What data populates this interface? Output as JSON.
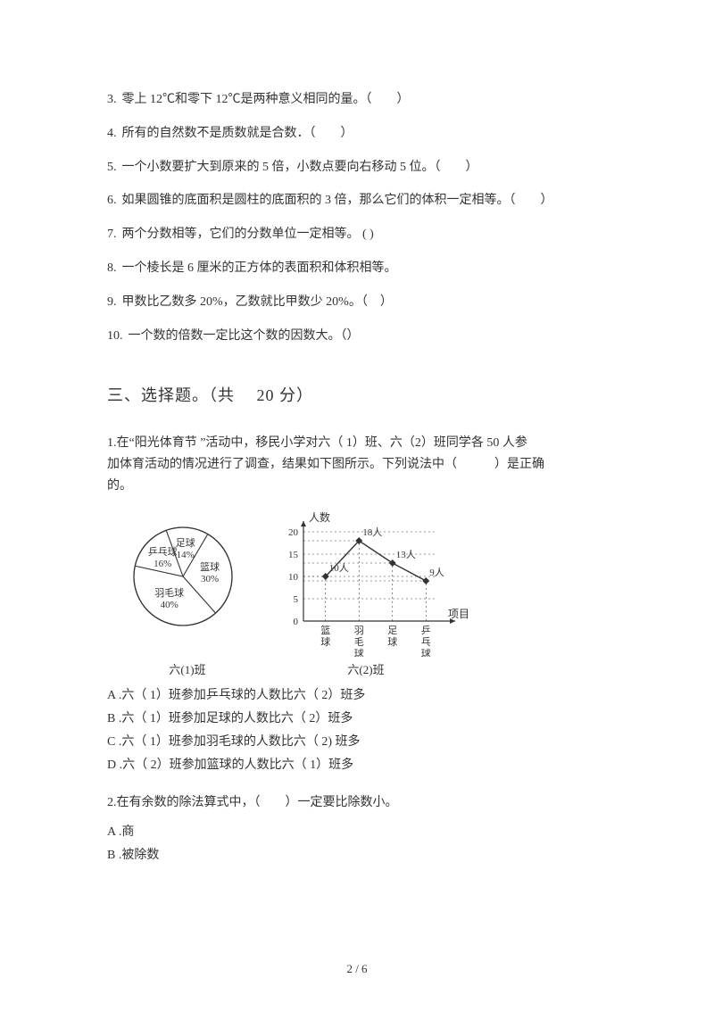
{
  "questions_tf": [
    {
      "num": "3.",
      "text": "零上 12℃和零下 12℃是两种意义相同的量。（　　）"
    },
    {
      "num": "4.",
      "text": "所有的自然数不是质数就是合数．（　　）"
    },
    {
      "num": "5.",
      "text": "一个小数要扩大到原来的  5 倍，小数点要向右移动  5 位。（　　）"
    },
    {
      "num": "6.",
      "text": "如果圆锥的底面积是圆柱的底面积的 3 倍，那么它们的体积一定相等。（　　）"
    },
    {
      "num": "7.",
      "text": "两个分数相等，它们的分数单位一定相等。  (    )"
    },
    {
      "num": "8.",
      "text": "一个棱长是  6 厘米的正方体的表面积和体积相等。"
    },
    {
      "num": "9.",
      "text": "甲数比乙数多  20%，乙数就比甲数少 20%。（　）"
    },
    {
      "num": "10.",
      "text": "一个数的倍数一定比这个数的因数大。（）"
    }
  ],
  "section3": {
    "heading": "三、选择题。（共　 20 分）",
    "q1": {
      "num": "1.",
      "text_line1": "在“阳光体育节 ”活动中，移民小学对六（ 1）班、六（2）班同学各  50 人参",
      "text_line2": "加体育活动的情况进行了调查，结果如下图所示。下列说法中（　　　）是正确",
      "text_line3": "的。",
      "pie": {
        "label_class1": "六(1)班",
        "slices": [
          {
            "label": "足球",
            "pct": "14%",
            "pct_val": 14
          },
          {
            "label": "篮球",
            "pct": "30%",
            "pct_val": 30
          },
          {
            "label": "羽毛球",
            "pct": "40%",
            "pct_val": 40
          },
          {
            "label": "乒乓球",
            "pct": "16%",
            "pct_val": 16
          }
        ],
        "stroke": "#333333",
        "fill": "#ffffff"
      },
      "line": {
        "label_class2": "六(2)班",
        "ylabel": "人数",
        "xlabel": "项目",
        "yticks": [
          0,
          5,
          10,
          15,
          20
        ],
        "categories": [
          "篮球",
          "羽毛球",
          "足球",
          "乒乓球"
        ],
        "values": [
          10,
          18,
          13,
          9
        ],
        "value_labels": [
          "10人",
          "18人",
          "13人",
          "9人"
        ],
        "stroke": "#333333",
        "grid_color": "#333333",
        "marker": "diamond"
      },
      "options": {
        "A": "A .六（ 1）班参加乒乓球的人数比六（  2）班多",
        "B": "B .六（ 1）班参加足球的人数比六（  2）班多",
        "C": "C .六（ 1）班参加羽毛球的人数比六（  2) 班多",
        "D": "D .六（ 2）班参加篮球的人数比六（  1）班多"
      }
    },
    "q2": {
      "num": "2.",
      "text": "在有余数的除法算式中，（　　）一定要比除数小。",
      "options": {
        "A": "A .商",
        "B": "B .被除数"
      }
    }
  },
  "footer": "2 / 6"
}
